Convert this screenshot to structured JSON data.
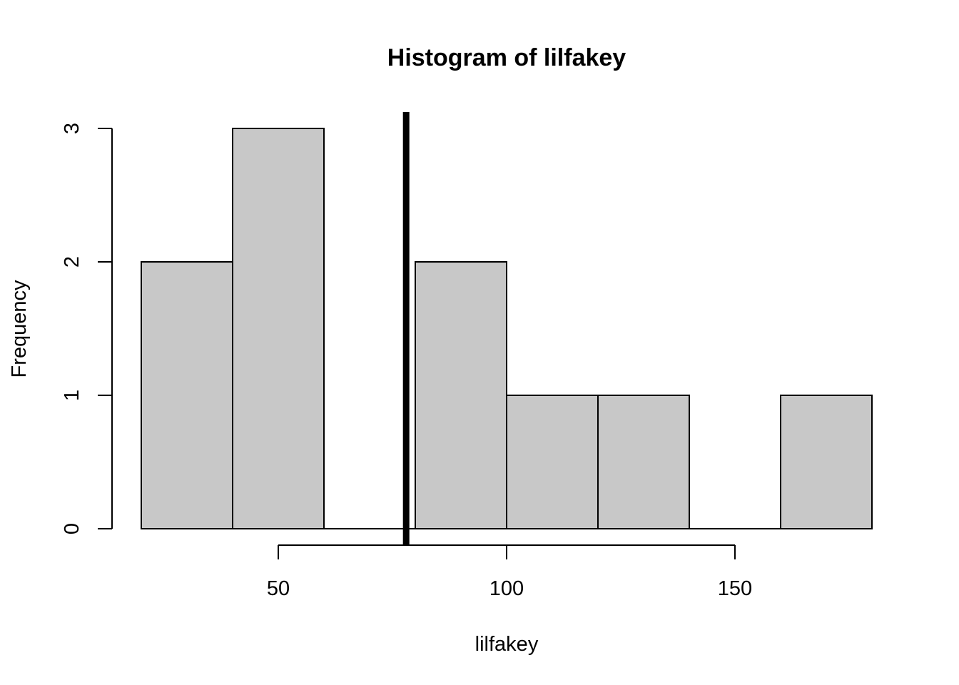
{
  "chart_data": {
    "type": "bar",
    "title": "Histogram of lilfakey",
    "xlabel": "lilfakey",
    "ylabel": "Frequency",
    "bins": [
      {
        "from": 20,
        "to": 40,
        "count": 2
      },
      {
        "from": 40,
        "to": 60,
        "count": 3
      },
      {
        "from": 60,
        "to": 80,
        "count": 0
      },
      {
        "from": 80,
        "to": 100,
        "count": 2
      },
      {
        "from": 100,
        "to": 120,
        "count": 1
      },
      {
        "from": 120,
        "to": 140,
        "count": 1
      },
      {
        "from": 140,
        "to": 160,
        "count": 0
      },
      {
        "from": 160,
        "to": 180,
        "count": 1
      }
    ],
    "xlim": [
      20,
      180
    ],
    "ylim": [
      0,
      3
    ],
    "x_ticks": [
      50,
      100,
      150
    ],
    "y_ticks": [
      0,
      1,
      2,
      3
    ],
    "vline": 78,
    "bar_color": "#c8c8c8",
    "outline_color": "#000000",
    "grid": false
  }
}
